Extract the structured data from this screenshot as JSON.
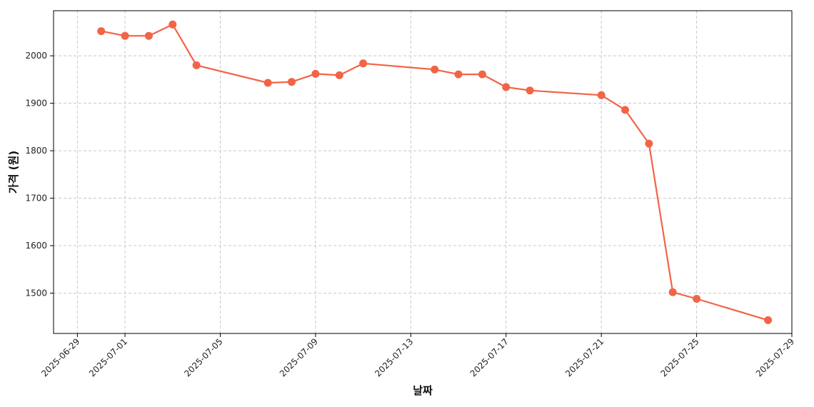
{
  "chart_data": {
    "type": "line",
    "title": "",
    "xlabel": "날짜",
    "ylabel": "가격 (원)",
    "xlim": [
      "2025-06-28",
      "2025-07-29"
    ],
    "ylim": [
      1415,
      2095
    ],
    "grid": true,
    "x_ticks": [
      "2025-06-29",
      "2025-07-01",
      "2025-07-05",
      "2025-07-09",
      "2025-07-13",
      "2025-07-17",
      "2025-07-21",
      "2025-07-25",
      "2025-07-29"
    ],
    "y_ticks": [
      1500,
      1600,
      1700,
      1800,
      1900,
      2000
    ],
    "colors": {
      "line": "#f26446",
      "marker": "#f26446",
      "grid": "#c8c8c8",
      "axis": "#000000"
    },
    "series": [
      {
        "x": [
          "2025-06-30",
          "2025-07-01",
          "2025-07-02",
          "2025-07-03",
          "2025-07-04",
          "2025-07-07",
          "2025-07-08",
          "2025-07-09",
          "2025-07-10",
          "2025-07-11",
          "2025-07-14",
          "2025-07-15",
          "2025-07-16",
          "2025-07-17",
          "2025-07-18",
          "2025-07-21",
          "2025-07-22",
          "2025-07-23",
          "2025-07-24",
          "2025-07-25",
          "2025-07-28"
        ],
        "values": [
          2052,
          2042,
          2042,
          2066,
          1980,
          1943,
          1945,
          1962,
          1959,
          1984,
          1971,
          1961,
          1961,
          1934,
          1927,
          1917,
          1886,
          1815,
          1502,
          1488,
          1443
        ]
      }
    ]
  }
}
